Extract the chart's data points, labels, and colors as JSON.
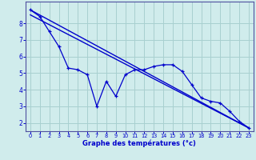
{
  "bg_color": "#d0ecec",
  "grid_color": "#a8d0d0",
  "line_color": "#0000cc",
  "xlabel": "Graphe des températures (°c)",
  "xlabel_color": "#0000cc",
  "tick_color": "#0000cc",
  "axis_color": "#5050a0",
  "ylim": [
    1.5,
    9.3
  ],
  "xlim": [
    -0.5,
    23.5
  ],
  "yticks": [
    2,
    3,
    4,
    5,
    6,
    7,
    8
  ],
  "xticks": [
    0,
    1,
    2,
    3,
    4,
    5,
    6,
    7,
    8,
    9,
    10,
    11,
    12,
    13,
    14,
    15,
    16,
    17,
    18,
    19,
    20,
    21,
    22,
    23
  ],
  "line1_x": [
    0,
    1,
    2,
    3,
    4,
    5,
    6,
    7,
    8,
    9,
    10,
    11,
    12,
    13,
    14,
    15,
    16,
    17,
    18,
    19,
    20,
    21,
    22,
    23
  ],
  "line1_y": [
    8.8,
    8.4,
    7.5,
    6.6,
    5.3,
    5.2,
    4.9,
    3.0,
    4.5,
    3.6,
    4.9,
    5.2,
    5.2,
    5.4,
    5.5,
    5.5,
    5.1,
    4.3,
    3.5,
    3.3,
    3.2,
    2.7,
    2.1,
    1.7
  ],
  "line2_x": [
    0,
    23
  ],
  "line2_y": [
    8.8,
    1.7
  ],
  "line3_x": [
    0,
    23
  ],
  "line3_y": [
    8.5,
    1.7
  ]
}
